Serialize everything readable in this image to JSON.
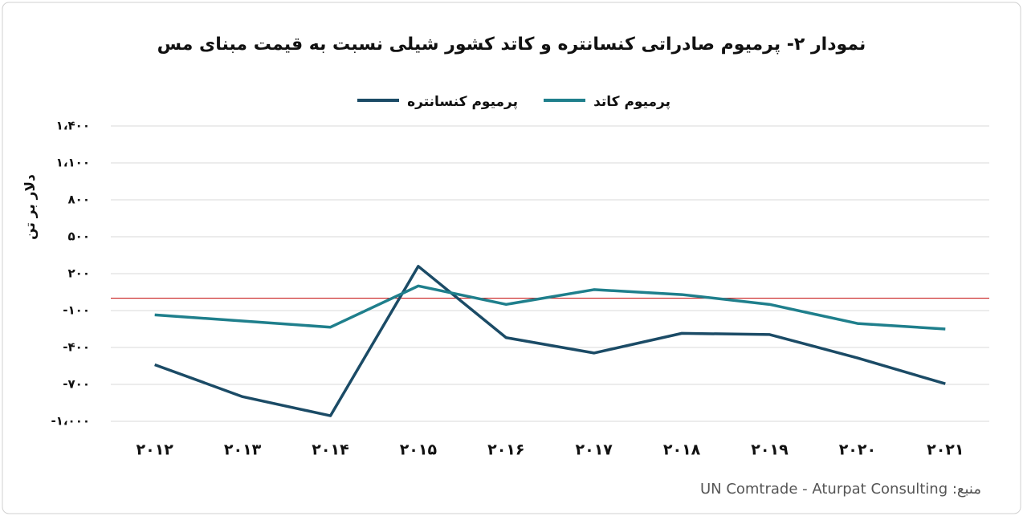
{
  "chart_data": {
    "type": "line",
    "title": "نمودار ۲- پرمیوم صادراتی کنسانتره و کاتد کشور شیلی نسبت به قیمت مبنای مس",
    "y_label": "دلار بر تن",
    "source": "منبع: UN Comtrade - Aturpat Consulting",
    "categories": [
      "۲۰۱۲",
      "۲۰۱۳",
      "۲۰۱۴",
      "۲۰۱۵",
      "۲۰۱۶",
      "۲۰۱۷",
      "۲۰۱۸",
      "۲۰۱۹",
      "۲۰۲۰",
      "۲۰۲۱"
    ],
    "series": [
      {
        "name": "پرمیوم کنسانتره",
        "color": "#1b4b66",
        "values": [
          -540,
          -800,
          -955,
          260,
          -320,
          -445,
          -285,
          -295,
          -485,
          -695
        ]
      },
      {
        "name": "پرمیوم کاتد",
        "color": "#1f7f8c",
        "values": [
          -135,
          -185,
          -235,
          100,
          -50,
          70,
          30,
          -50,
          -205,
          -250
        ]
      }
    ],
    "ylim": [
      -1000,
      1400
    ],
    "yticks": [
      {
        "value": -1000,
        "label": "-۱،۰۰۰"
      },
      {
        "value": -700,
        "label": "-۷۰۰"
      },
      {
        "value": -400,
        "label": "-۴۰۰"
      },
      {
        "value": -100,
        "label": "-۱۰۰"
      },
      {
        "value": 200,
        "label": "۲۰۰"
      },
      {
        "value": 500,
        "label": "۵۰۰"
      },
      {
        "value": 800,
        "label": "۸۰۰"
      },
      {
        "value": 1100,
        "label": "۱،۱۰۰"
      },
      {
        "value": 1400,
        "label": "۱،۴۰۰"
      }
    ],
    "grid": true,
    "zero_line_color": "#c00000"
  }
}
